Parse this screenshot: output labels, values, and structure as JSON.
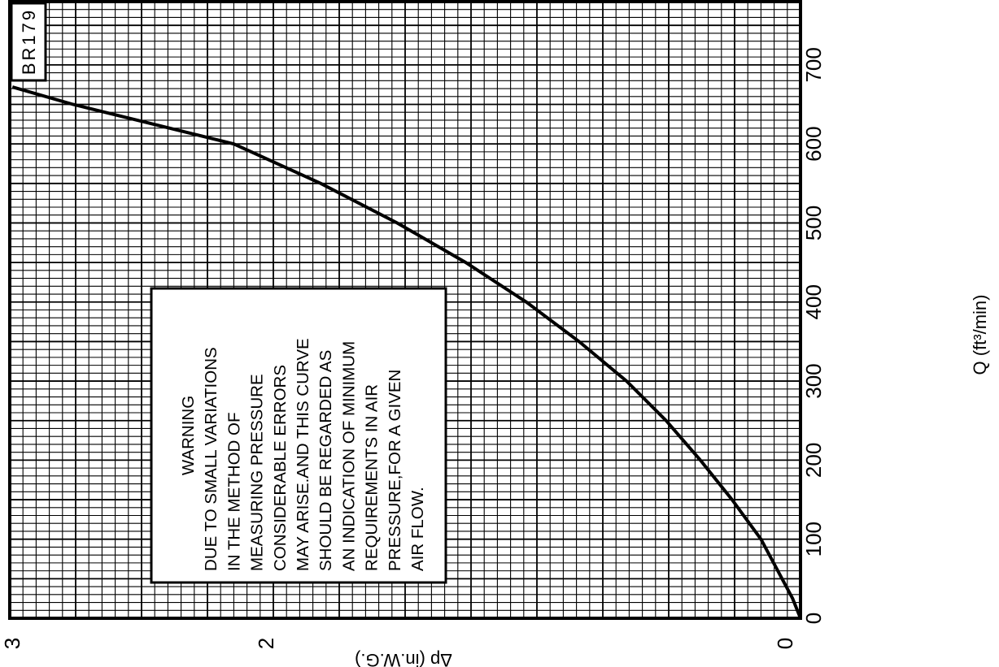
{
  "chart_data": {
    "type": "line",
    "title": "",
    "chart_code": "BR179",
    "xlabel": "Q (ft³/min)",
    "ylabel": "Δp (in.W.G.)",
    "xlim": [
      0,
      780
    ],
    "ylim": [
      0,
      3
    ],
    "grid": true,
    "x_ticks": [
      "0",
      "100",
      "200",
      "300",
      "400",
      "500",
      "600",
      "700"
    ],
    "y_ticks": [
      "0",
      "2",
      "3"
    ],
    "series": [
      {
        "name": "",
        "x": [
          0,
          25,
          50,
          100,
          150,
          200,
          250,
          300,
          350,
          400,
          450,
          500,
          550,
          600,
          650,
          672
        ],
        "y": [
          0,
          0.03,
          0.07,
          0.15,
          0.26,
          0.38,
          0.51,
          0.66,
          0.84,
          1.04,
          1.27,
          1.53,
          1.82,
          2.15,
          2.76,
          2.99
        ]
      }
    ],
    "warning": {
      "lines": [
        "WARNING",
        "DUE TO SMALL VARIATIONS",
        "IN THE METHOD OF",
        "MEASURING PRESSURE",
        "CONSIDERABLE ERRORS",
        "MAY ARISE.AND THIS CURVE",
        "SHOULD BE REGARDED AS",
        "AN INDICATION OF MINIMUM",
        "REQUIREMENTS IN AIR",
        "PRESSURE,FOR A GIVEN",
        "AIR FLOW."
      ]
    }
  }
}
